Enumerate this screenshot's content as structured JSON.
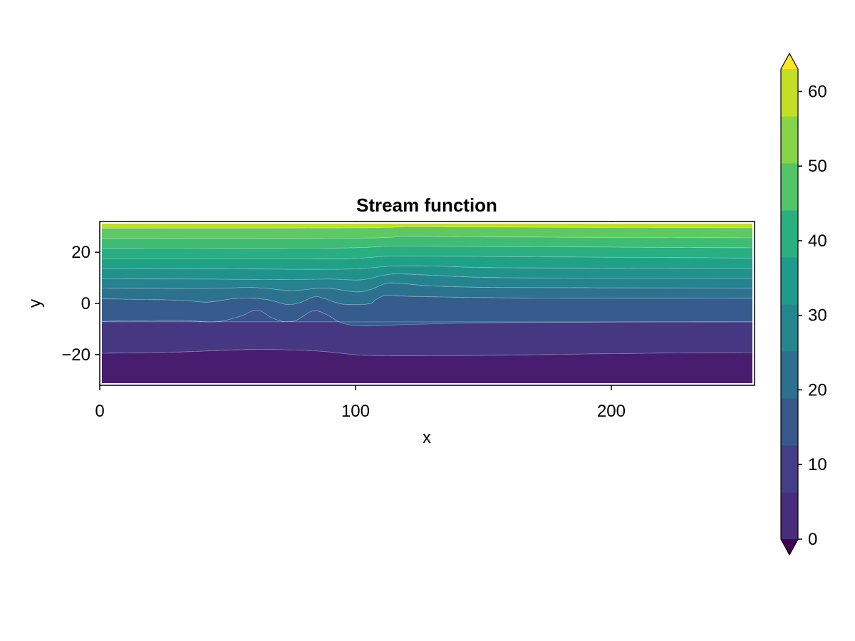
{
  "chart_data": {
    "type": "contour",
    "title": "Stream function",
    "xlabel": "x",
    "ylabel": "y",
    "xlim": [
      0,
      256
    ],
    "ylim": [
      -32,
      32
    ],
    "x_ticks": [
      0,
      100,
      200
    ],
    "x_tick_labels": [
      "0",
      "100",
      "200"
    ],
    "y_ticks": [
      -20,
      0,
      20
    ],
    "y_tick_labels": [
      "−20",
      "0",
      "20"
    ],
    "contour_levels": [
      0,
      6.5,
      13,
      15,
      20,
      25,
      30,
      35,
      40,
      45,
      50,
      55,
      60
    ],
    "colorbar": {
      "range": [
        0,
        63
      ],
      "ticks": [
        0,
        10,
        20,
        30,
        40,
        50,
        60
      ],
      "tick_labels": [
        "0",
        "10",
        "20",
        "30",
        "40",
        "50",
        "60"
      ],
      "extend": "both",
      "levels": [
        0,
        6.3,
        12.6,
        18.9,
        25.2,
        31.5,
        37.8,
        44.1,
        50.4,
        56.7,
        63
      ],
      "colors": [
        "#472d7b",
        "#433e85",
        "#38588c",
        "#2d708e",
        "#25858e",
        "#1e9b8a",
        "#2ab07f",
        "#52c569",
        "#86d549",
        "#c2df23"
      ],
      "under_color": "#440154",
      "over_color": "#fde725"
    },
    "contour_lines": [
      {
        "level": 6.5,
        "points": [
          [
            0,
            -19.5
          ],
          [
            30,
            -19
          ],
          [
            60,
            -18
          ],
          [
            85,
            -18.6
          ],
          [
            105,
            -20.3
          ],
          [
            140,
            -20.4
          ],
          [
            180,
            -19.9
          ],
          [
            220,
            -19.4
          ],
          [
            256,
            -19.2
          ]
        ]
      },
      {
        "level": 13,
        "points": [
          [
            0,
            -7.2
          ],
          [
            256,
            -7.2
          ]
        ]
      },
      {
        "level": 15,
        "points": [
          [
            0,
            -7
          ],
          [
            30,
            -6.6
          ],
          [
            45,
            -7.2
          ],
          [
            55,
            -5
          ],
          [
            60,
            -2.8
          ],
          [
            63,
            -3
          ],
          [
            67,
            -5.5
          ],
          [
            72,
            -7.1
          ],
          [
            77,
            -6.5
          ],
          [
            82,
            -3.4
          ],
          [
            85,
            -2.9
          ],
          [
            89,
            -4.5
          ],
          [
            95,
            -7.8
          ],
          [
            103,
            -8.8
          ],
          [
            112,
            -8.5
          ],
          [
            125,
            -8.1
          ],
          [
            150,
            -7.6
          ],
          [
            200,
            -7.3
          ],
          [
            256,
            -7.2
          ]
        ]
      },
      {
        "level": 20,
        "points": [
          [
            0,
            1.8
          ],
          [
            30,
            1.3
          ],
          [
            42,
            0.5
          ],
          [
            52,
            1.8
          ],
          [
            60,
            2
          ],
          [
            67,
            1.2
          ],
          [
            73,
            -0.4
          ],
          [
            78,
            0.2
          ],
          [
            84,
            2.6
          ],
          [
            88,
            1.8
          ],
          [
            95,
            -0.3
          ],
          [
            105,
            -0.2
          ],
          [
            108,
            1.5
          ],
          [
            112,
            3.2
          ],
          [
            120,
            2.8
          ],
          [
            135,
            2.5
          ],
          [
            170,
            2.1
          ],
          [
            256,
            2
          ]
        ]
      },
      {
        "level": 25,
        "points": [
          [
            0,
            6
          ],
          [
            40,
            5.8
          ],
          [
            60,
            6.2
          ],
          [
            75,
            5
          ],
          [
            88,
            6
          ],
          [
            100,
            4.5
          ],
          [
            106,
            5.5
          ],
          [
            112,
            7.8
          ],
          [
            118,
            7.8
          ],
          [
            130,
            6.8
          ],
          [
            160,
            6.2
          ],
          [
            256,
            6
          ]
        ]
      },
      {
        "level": 30,
        "points": [
          [
            0,
            9.6
          ],
          [
            40,
            9.5
          ],
          [
            70,
            9.3
          ],
          [
            90,
            9.5
          ],
          [
            102,
            9.2
          ],
          [
            112,
            11.2
          ],
          [
            118,
            11.5
          ],
          [
            130,
            11
          ],
          [
            160,
            10
          ],
          [
            256,
            9.8
          ]
        ]
      },
      {
        "level": 35,
        "points": [
          [
            0,
            13.6
          ],
          [
            50,
            13.5
          ],
          [
            80,
            13.3
          ],
          [
            100,
            13.5
          ],
          [
            115,
            14.6
          ],
          [
            130,
            14.6
          ],
          [
            160,
            13.9
          ],
          [
            256,
            13.7
          ]
        ]
      },
      {
        "level": 40,
        "points": [
          [
            0,
            17.4
          ],
          [
            80,
            17.4
          ],
          [
            100,
            17.6
          ],
          [
            115,
            18.5
          ],
          [
            140,
            18.4
          ],
          [
            256,
            17.7
          ]
        ]
      },
      {
        "level": 45,
        "points": [
          [
            0,
            21.6
          ],
          [
            90,
            21.6
          ],
          [
            115,
            22.4
          ],
          [
            140,
            22.3
          ],
          [
            256,
            21.7
          ]
        ]
      },
      {
        "level": 50,
        "points": [
          [
            0,
            25.4
          ],
          [
            100,
            25.5
          ],
          [
            120,
            26.2
          ],
          [
            145,
            26
          ],
          [
            256,
            25.6
          ]
        ]
      },
      {
        "level": 55,
        "points": [
          [
            0,
            29.4
          ],
          [
            100,
            29.5
          ],
          [
            120,
            29.9
          ],
          [
            150,
            29.8
          ],
          [
            256,
            29.5
          ]
        ]
      }
    ],
    "band_colors": [
      "#481c6e",
      "#453781",
      "#3b528b",
      "#365c8d",
      "#2c728e",
      "#26828e",
      "#21918c",
      "#1fa187",
      "#28ae80",
      "#3fbc73",
      "#5ec962",
      "#84d44b",
      "#c0df25"
    ],
    "grid": false,
    "legend": "colorbar-right"
  }
}
